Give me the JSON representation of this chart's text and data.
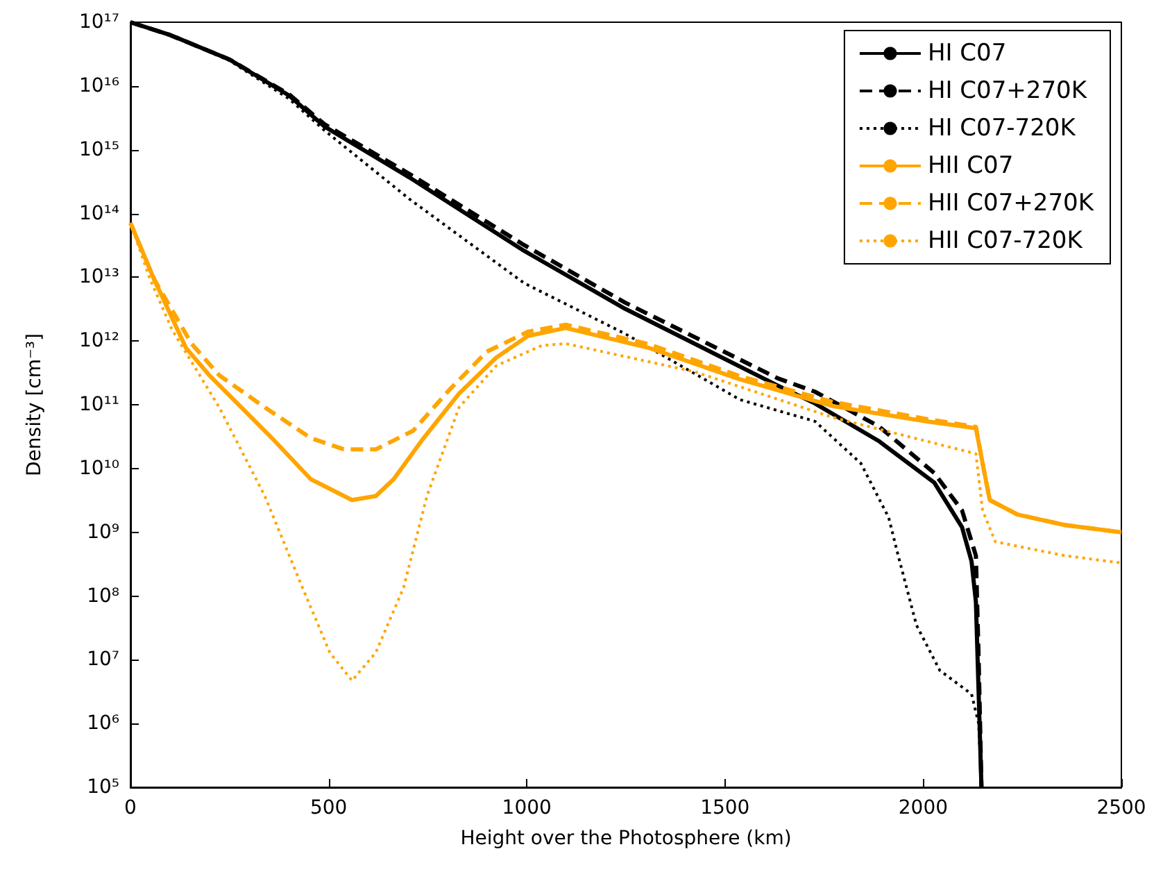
{
  "chart_data": {
    "type": "line",
    "xlabel": "Height over the Photosphere (km)",
    "ylabel": "Density [cm⁻³]",
    "xlim": [
      0,
      2500
    ],
    "xticks": [
      0,
      500,
      1000,
      1500,
      2000,
      2500
    ],
    "ylim": [
      100000.0,
      1e+17
    ],
    "yticks": [
      {
        "value": 100000.0,
        "label": "10⁵"
      },
      {
        "value": 1000000.0,
        "label": "10⁶"
      },
      {
        "value": 10000000.0,
        "label": "10⁷"
      },
      {
        "value": 100000000.0,
        "label": "10⁸"
      },
      {
        "value": 1000000000.0,
        "label": "10⁹"
      },
      {
        "value": 10000000000.0,
        "label": "10¹⁰"
      },
      {
        "value": 100000000000.0,
        "label": "10¹¹"
      },
      {
        "value": 1000000000000.0,
        "label": "10¹²"
      },
      {
        "value": 10000000000000.0,
        "label": "10¹³"
      },
      {
        "value": 100000000000000.0,
        "label": "10¹⁴"
      },
      {
        "value": 1000000000000000.0,
        "label": "10¹⁵"
      },
      {
        "value": 1e+16,
        "label": "10¹⁶"
      },
      {
        "value": 1e+17,
        "label": "10¹⁷"
      }
    ],
    "log": "y",
    "grid": false,
    "legend": "top right",
    "marker": "none",
    "series": [
      {
        "name": "HI C07",
        "color": "#000000",
        "line_style": "solid",
        "x": [
          0,
          100,
          250,
          400,
          490,
          703,
          993,
          1248,
          1633,
          1727,
          1888,
          2028,
          2098,
          2122,
          2133,
          2140,
          2147
        ],
        "values": [
          1e+17,
          6.3e+16,
          2.6e+16,
          7100000000000000.0,
          2300000000000000.0,
          370000000000000.0,
          26000000000000.0,
          3200000000000.0,
          200000000000.0,
          105000000000.0,
          27000000000.0,
          6000000000.0,
          1200000000.0,
          350000000.0,
          81000000.0,
          2900000.0,
          100000.0
        ]
      },
      {
        "name": "HI C07+270K",
        "color": "#000000",
        "line_style": "dashed",
        "x": [
          0,
          100,
          250,
          400,
          490,
          703,
          993,
          1248,
          1633,
          1727,
          1888,
          2028,
          2098,
          2133,
          2140,
          2147
        ],
        "values": [
          1e+17,
          6.3e+16,
          2.6e+16,
          7400000000000000.0,
          2500000000000000.0,
          420000000000000.0,
          32000000000000.0,
          4000000000000.0,
          260000000000.0,
          160000000000.0,
          46000000000.0,
          8500000000.0,
          2200000000.0,
          430000000.0,
          10000000.0,
          100000.0
        ]
      },
      {
        "name": "HI C07-720K",
        "color": "#000000",
        "line_style": "dotted",
        "x": [
          0,
          100,
          250,
          400,
          490,
          703,
          993,
          1248,
          1538,
          1727,
          1843,
          1913,
          1937,
          1983,
          2042,
          2122,
          2140,
          2147
        ],
        "values": [
          1e+17,
          6.3e+16,
          2.5e+16,
          6300000000000000.0,
          2000000000000000.0,
          170000000000000.0,
          8100000000000.0,
          1300000000000.0,
          120000000000.0,
          55000000000.0,
          12000000000.0,
          1700000000.0,
          430000000.0,
          35000000.0,
          6800000.0,
          2900000.0,
          1000000.0,
          100000.0
        ]
      },
      {
        "name": "HII C07",
        "color": "#ffa500",
        "line_style": "solid",
        "x": [
          0,
          59,
          140,
          199,
          280,
          364,
          455,
          559,
          619,
          664,
          734,
          829,
          923,
          1003,
          1098,
          1308,
          1538,
          1773,
          2007,
          2133,
          2150,
          2168,
          2238,
          2357,
          2500
        ],
        "values": [
          71000000000000.0,
          9500000000000.0,
          780000000000.0,
          290000000000.0,
          91000000000.0,
          27000000000.0,
          6800000000.0,
          3200000000.0,
          3700000000.0,
          6800000000.0,
          27000000000.0,
          150000000000.0,
          550000000000.0,
          1200000000000.0,
          1600000000000.0,
          780000000000.0,
          250000000000.0,
          95000000000.0,
          55000000000.0,
          43000000000.0,
          12000000000.0,
          3200000000.0,
          1900000000.0,
          1300000000.0,
          1000000000.0
        ]
      },
      {
        "name": "HII C07+270K",
        "color": "#ffa500",
        "line_style": "dashed",
        "x": [
          0,
          59,
          154,
          224,
          339,
          455,
          538,
          619,
          713,
          804,
          899,
          1003,
          1098,
          1308,
          1538,
          1773,
          2007,
          2133,
          2150,
          2168,
          2238,
          2357,
          2500
        ],
        "values": [
          71000000000000.0,
          9500000000000.0,
          910000000000.0,
          290000000000.0,
          91000000000.0,
          30000000000.0,
          20000000000.0,
          20000000000.0,
          39000000000.0,
          170000000000.0,
          680000000000.0,
          1400000000000.0,
          1800000000000.0,
          890000000000.0,
          280000000000.0,
          110000000000.0,
          60000000000.0,
          45000000000.0,
          12000000000.0,
          3200000000.0,
          1900000000.0,
          1300000000.0,
          1000000000.0
        ]
      },
      {
        "name": "HII C07-720K",
        "color": "#ffa500",
        "line_style": "dotted",
        "x": [
          0,
          49,
          105,
          224,
          339,
          434,
          503,
          559,
          619,
          689,
          748,
          829,
          923,
          1038,
          1098,
          1423,
          1773,
          2007,
          2133,
          2150,
          2182,
          2357,
          2500
        ],
        "values": [
          71000000000000.0,
          9500000000000.0,
          1500000000000.0,
          91000000000.0,
          3700000000.0,
          135000000.0,
          13000000.0,
          4700000.0,
          13000000.0,
          135000000.0,
          3700000000.0,
          91000000000.0,
          410000000000.0,
          850000000000.0,
          910000000000.0,
          330000000000.0,
          63000000000.0,
          27000000000.0,
          17000000000.0,
          2200000000.0,
          710000000.0,
          430000000.0,
          330000000.0
        ]
      }
    ]
  }
}
